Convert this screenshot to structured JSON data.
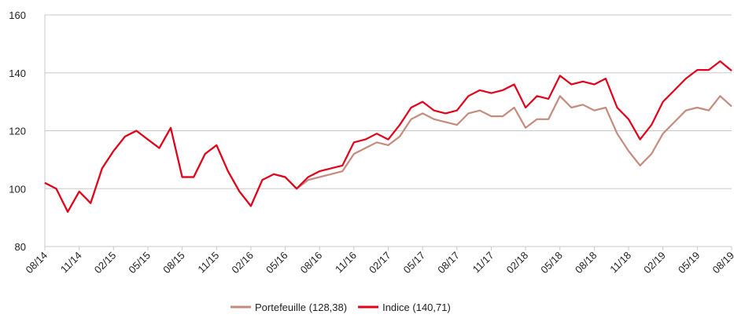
{
  "chart_data": {
    "type": "line",
    "categories": [
      "08/14",
      null,
      null,
      "11/14",
      null,
      null,
      "02/15",
      null,
      null,
      "05/15",
      null,
      null,
      "08/15",
      null,
      null,
      "11/15",
      null,
      null,
      "02/16",
      null,
      null,
      "05/16",
      null,
      null,
      "08/16",
      null,
      null,
      "11/16",
      null,
      null,
      "02/17",
      null,
      null,
      "05/17",
      null,
      null,
      "08/17",
      null,
      null,
      "11/17",
      null,
      null,
      "02/18",
      null,
      null,
      "05/18",
      null,
      null,
      "08/18",
      null,
      null,
      "11/18",
      null,
      null,
      "02/19",
      null,
      null,
      "05/19",
      null,
      null,
      "08/19"
    ],
    "series": [
      {
        "name": "Portefeuille (128,38)",
        "color": "#c48b7c",
        "values": [
          102,
          100,
          92,
          99,
          95,
          107,
          113,
          118,
          120,
          117,
          114,
          121,
          104,
          104,
          112,
          115,
          106,
          99,
          94,
          103,
          105,
          104,
          100,
          103,
          104,
          105,
          106,
          112,
          114,
          116,
          115,
          118,
          124,
          126,
          124,
          123,
          122,
          126,
          127,
          125,
          125,
          128,
          121,
          124,
          124,
          132,
          128,
          129,
          127,
          128,
          119,
          113,
          108,
          112,
          119,
          123,
          127,
          128,
          127,
          132,
          128.38
        ]
      },
      {
        "name": "Indice (140,71)",
        "color": "#e2001a",
        "values": [
          102,
          100,
          92,
          99,
          95,
          107,
          113,
          118,
          120,
          117,
          114,
          121,
          104,
          104,
          112,
          115,
          106,
          99,
          94,
          103,
          105,
          104,
          100,
          104,
          106,
          107,
          108,
          116,
          117,
          119,
          117,
          122,
          128,
          130,
          127,
          126,
          127,
          132,
          134,
          133,
          134,
          136,
          128,
          132,
          131,
          139,
          136,
          137,
          136,
          138,
          128,
          124,
          117,
          122,
          130,
          134,
          138,
          141,
          141,
          144,
          140.71
        ]
      }
    ],
    "ylim": [
      80,
      160
    ],
    "yticks": [
      80,
      100,
      120,
      140,
      160
    ],
    "grid": true
  }
}
